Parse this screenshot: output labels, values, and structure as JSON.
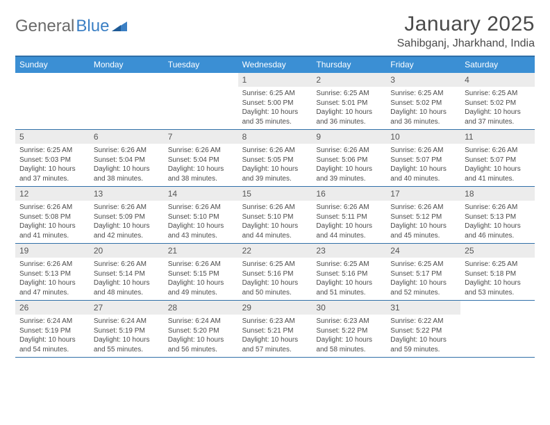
{
  "logo": {
    "part1": "General",
    "part2": "Blue"
  },
  "colors": {
    "header_bg": "#3b8fd4",
    "header_text": "#ffffff",
    "rule": "#2f6fa8",
    "daynum_bg": "#ececec",
    "text": "#4a4a4a",
    "logo_gray": "#6a6a6a",
    "logo_blue": "#3b7fc4"
  },
  "title": "January 2025",
  "location": "Sahibganj, Jharkhand, India",
  "day_names": [
    "Sunday",
    "Monday",
    "Tuesday",
    "Wednesday",
    "Thursday",
    "Friday",
    "Saturday"
  ],
  "weeks": [
    [
      {
        "empty": true
      },
      {
        "empty": true
      },
      {
        "empty": true
      },
      {
        "num": "1",
        "sunrise": "Sunrise: 6:25 AM",
        "sunset": "Sunset: 5:00 PM",
        "day1": "Daylight: 10 hours",
        "day2": "and 35 minutes."
      },
      {
        "num": "2",
        "sunrise": "Sunrise: 6:25 AM",
        "sunset": "Sunset: 5:01 PM",
        "day1": "Daylight: 10 hours",
        "day2": "and 36 minutes."
      },
      {
        "num": "3",
        "sunrise": "Sunrise: 6:25 AM",
        "sunset": "Sunset: 5:02 PM",
        "day1": "Daylight: 10 hours",
        "day2": "and 36 minutes."
      },
      {
        "num": "4",
        "sunrise": "Sunrise: 6:25 AM",
        "sunset": "Sunset: 5:02 PM",
        "day1": "Daylight: 10 hours",
        "day2": "and 37 minutes."
      }
    ],
    [
      {
        "num": "5",
        "sunrise": "Sunrise: 6:25 AM",
        "sunset": "Sunset: 5:03 PM",
        "day1": "Daylight: 10 hours",
        "day2": "and 37 minutes."
      },
      {
        "num": "6",
        "sunrise": "Sunrise: 6:26 AM",
        "sunset": "Sunset: 5:04 PM",
        "day1": "Daylight: 10 hours",
        "day2": "and 38 minutes."
      },
      {
        "num": "7",
        "sunrise": "Sunrise: 6:26 AM",
        "sunset": "Sunset: 5:04 PM",
        "day1": "Daylight: 10 hours",
        "day2": "and 38 minutes."
      },
      {
        "num": "8",
        "sunrise": "Sunrise: 6:26 AM",
        "sunset": "Sunset: 5:05 PM",
        "day1": "Daylight: 10 hours",
        "day2": "and 39 minutes."
      },
      {
        "num": "9",
        "sunrise": "Sunrise: 6:26 AM",
        "sunset": "Sunset: 5:06 PM",
        "day1": "Daylight: 10 hours",
        "day2": "and 39 minutes."
      },
      {
        "num": "10",
        "sunrise": "Sunrise: 6:26 AM",
        "sunset": "Sunset: 5:07 PM",
        "day1": "Daylight: 10 hours",
        "day2": "and 40 minutes."
      },
      {
        "num": "11",
        "sunrise": "Sunrise: 6:26 AM",
        "sunset": "Sunset: 5:07 PM",
        "day1": "Daylight: 10 hours",
        "day2": "and 41 minutes."
      }
    ],
    [
      {
        "num": "12",
        "sunrise": "Sunrise: 6:26 AM",
        "sunset": "Sunset: 5:08 PM",
        "day1": "Daylight: 10 hours",
        "day2": "and 41 minutes."
      },
      {
        "num": "13",
        "sunrise": "Sunrise: 6:26 AM",
        "sunset": "Sunset: 5:09 PM",
        "day1": "Daylight: 10 hours",
        "day2": "and 42 minutes."
      },
      {
        "num": "14",
        "sunrise": "Sunrise: 6:26 AM",
        "sunset": "Sunset: 5:10 PM",
        "day1": "Daylight: 10 hours",
        "day2": "and 43 minutes."
      },
      {
        "num": "15",
        "sunrise": "Sunrise: 6:26 AM",
        "sunset": "Sunset: 5:10 PM",
        "day1": "Daylight: 10 hours",
        "day2": "and 44 minutes."
      },
      {
        "num": "16",
        "sunrise": "Sunrise: 6:26 AM",
        "sunset": "Sunset: 5:11 PM",
        "day1": "Daylight: 10 hours",
        "day2": "and 44 minutes."
      },
      {
        "num": "17",
        "sunrise": "Sunrise: 6:26 AM",
        "sunset": "Sunset: 5:12 PM",
        "day1": "Daylight: 10 hours",
        "day2": "and 45 minutes."
      },
      {
        "num": "18",
        "sunrise": "Sunrise: 6:26 AM",
        "sunset": "Sunset: 5:13 PM",
        "day1": "Daylight: 10 hours",
        "day2": "and 46 minutes."
      }
    ],
    [
      {
        "num": "19",
        "sunrise": "Sunrise: 6:26 AM",
        "sunset": "Sunset: 5:13 PM",
        "day1": "Daylight: 10 hours",
        "day2": "and 47 minutes."
      },
      {
        "num": "20",
        "sunrise": "Sunrise: 6:26 AM",
        "sunset": "Sunset: 5:14 PM",
        "day1": "Daylight: 10 hours",
        "day2": "and 48 minutes."
      },
      {
        "num": "21",
        "sunrise": "Sunrise: 6:26 AM",
        "sunset": "Sunset: 5:15 PM",
        "day1": "Daylight: 10 hours",
        "day2": "and 49 minutes."
      },
      {
        "num": "22",
        "sunrise": "Sunrise: 6:25 AM",
        "sunset": "Sunset: 5:16 PM",
        "day1": "Daylight: 10 hours",
        "day2": "and 50 minutes."
      },
      {
        "num": "23",
        "sunrise": "Sunrise: 6:25 AM",
        "sunset": "Sunset: 5:16 PM",
        "day1": "Daylight: 10 hours",
        "day2": "and 51 minutes."
      },
      {
        "num": "24",
        "sunrise": "Sunrise: 6:25 AM",
        "sunset": "Sunset: 5:17 PM",
        "day1": "Daylight: 10 hours",
        "day2": "and 52 minutes."
      },
      {
        "num": "25",
        "sunrise": "Sunrise: 6:25 AM",
        "sunset": "Sunset: 5:18 PM",
        "day1": "Daylight: 10 hours",
        "day2": "and 53 minutes."
      }
    ],
    [
      {
        "num": "26",
        "sunrise": "Sunrise: 6:24 AM",
        "sunset": "Sunset: 5:19 PM",
        "day1": "Daylight: 10 hours",
        "day2": "and 54 minutes."
      },
      {
        "num": "27",
        "sunrise": "Sunrise: 6:24 AM",
        "sunset": "Sunset: 5:19 PM",
        "day1": "Daylight: 10 hours",
        "day2": "and 55 minutes."
      },
      {
        "num": "28",
        "sunrise": "Sunrise: 6:24 AM",
        "sunset": "Sunset: 5:20 PM",
        "day1": "Daylight: 10 hours",
        "day2": "and 56 minutes."
      },
      {
        "num": "29",
        "sunrise": "Sunrise: 6:23 AM",
        "sunset": "Sunset: 5:21 PM",
        "day1": "Daylight: 10 hours",
        "day2": "and 57 minutes."
      },
      {
        "num": "30",
        "sunrise": "Sunrise: 6:23 AM",
        "sunset": "Sunset: 5:22 PM",
        "day1": "Daylight: 10 hours",
        "day2": "and 58 minutes."
      },
      {
        "num": "31",
        "sunrise": "Sunrise: 6:22 AM",
        "sunset": "Sunset: 5:22 PM",
        "day1": "Daylight: 10 hours",
        "day2": "and 59 minutes."
      },
      {
        "empty": true
      }
    ]
  ]
}
